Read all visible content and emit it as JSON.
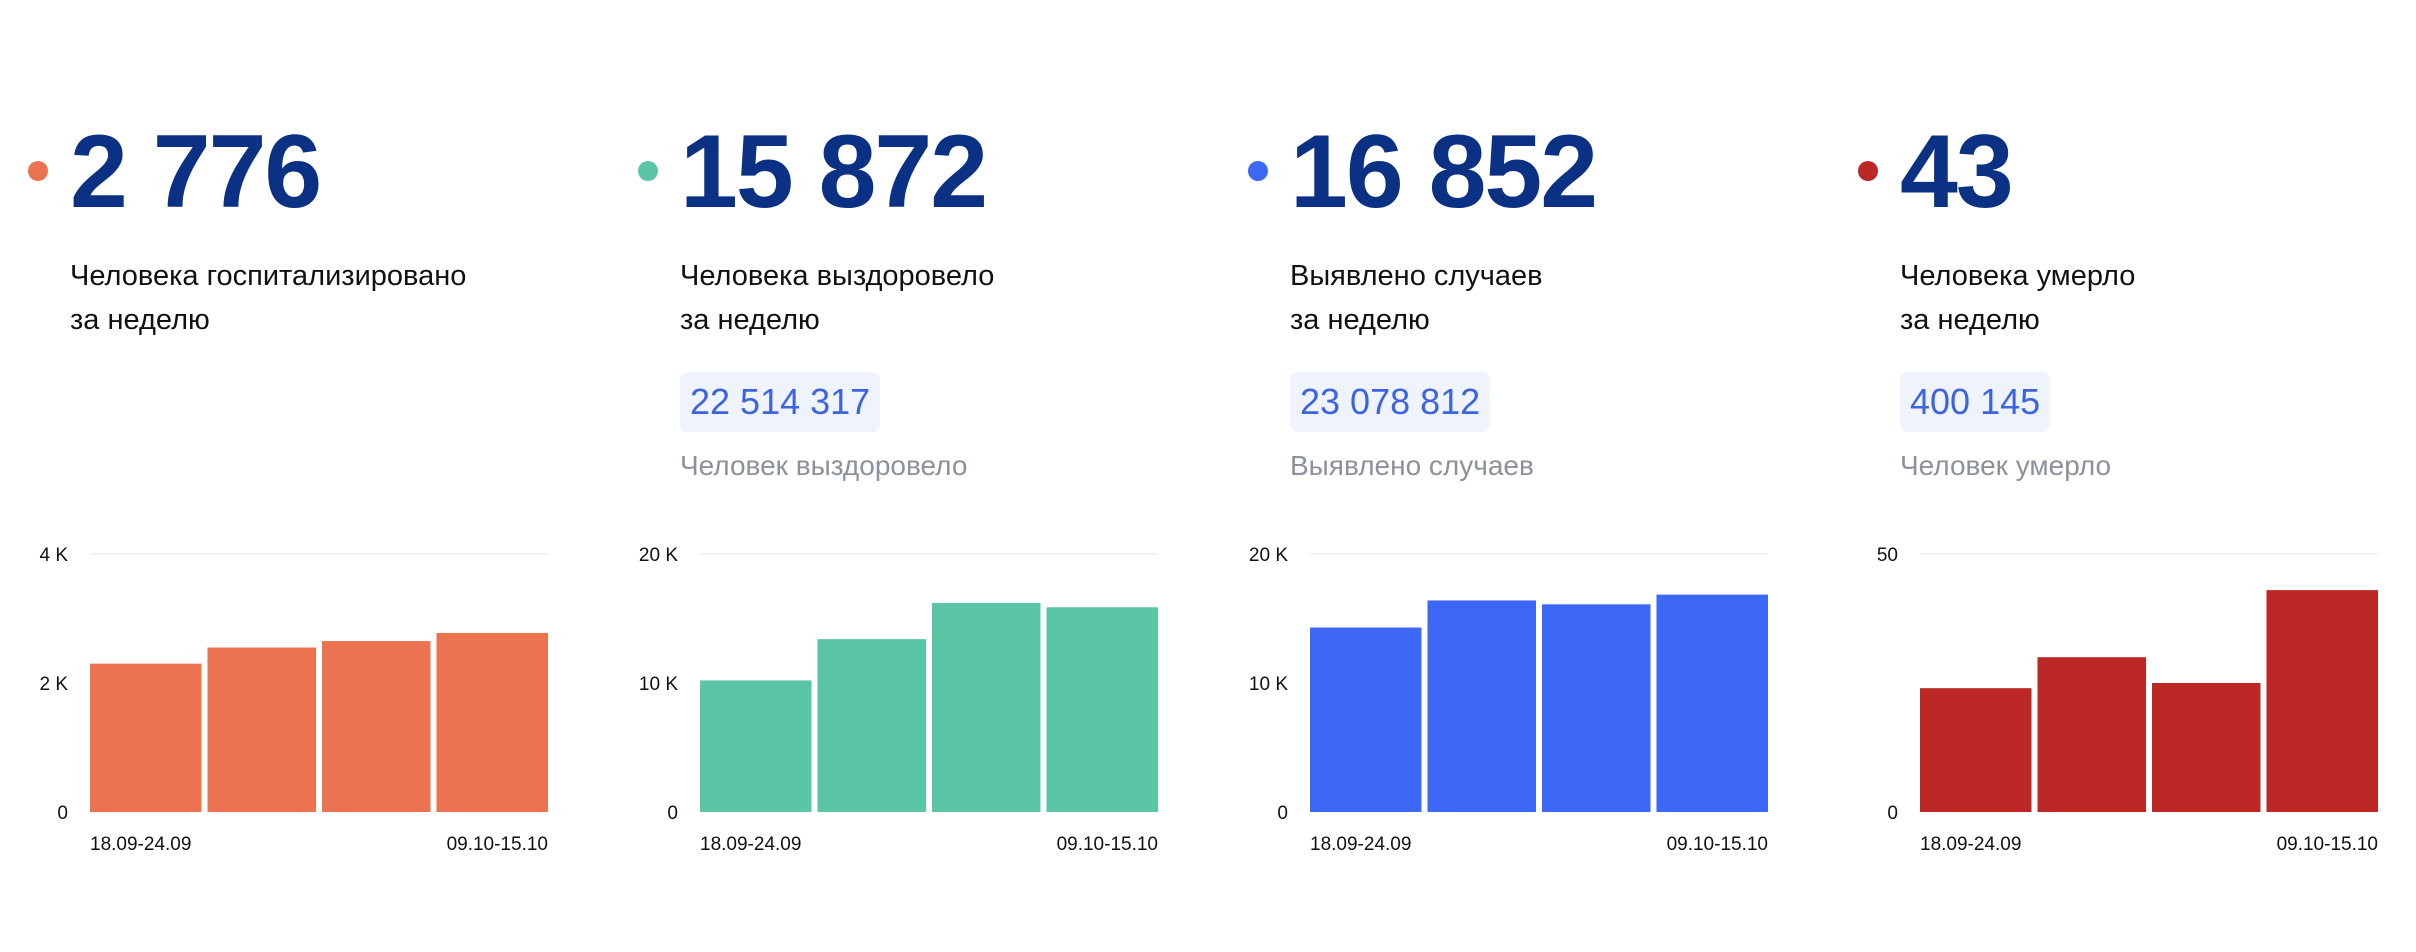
{
  "cards": [
    {
      "value": "2 776",
      "label_line1": "Человека госпитализировано",
      "label_line2": "за неделю",
      "total": "",
      "total_label": "",
      "color": "#ec7350"
    },
    {
      "value": "15 872",
      "label_line1": "Человека выздоровело",
      "label_line2": "за неделю",
      "total": "22 514 317",
      "total_label": "Человек выздоровело",
      "color": "#5ac6a6"
    },
    {
      "value": "16 852",
      "label_line1": "Выявлено случаев",
      "label_line2": "за неделю",
      "total": "23 078 812",
      "total_label": "Выявлено случаев",
      "color": "#3d67f5"
    },
    {
      "value": "43",
      "label_line1": "Человека умерло",
      "label_line2": "за неделю",
      "total": "400 145",
      "total_label": "Человек умерло",
      "color": "#bb2826"
    }
  ],
  "chart_data": [
    {
      "type": "bar",
      "categories": [
        "18.09-24.09",
        "",
        "",
        "09.10-15.10"
      ],
      "values": [
        2300,
        2550,
        2650,
        2776
      ],
      "ylim": [
        0,
        4000
      ],
      "yticks": [
        "4 K",
        "2 K",
        "0"
      ],
      "ytick_values": [
        4000,
        2000,
        0
      ],
      "xtick_first": "18.09-24.09",
      "xtick_last": "09.10-15.10",
      "color": "#ec7350"
    },
    {
      "type": "bar",
      "categories": [
        "18.09-24.09",
        "",
        "",
        "09.10-15.10"
      ],
      "values": [
        10200,
        13400,
        16200,
        15872
      ],
      "ylim": [
        0,
        20000
      ],
      "yticks": [
        "20 K",
        "10 K",
        "0"
      ],
      "ytick_values": [
        20000,
        10000,
        0
      ],
      "xtick_first": "18.09-24.09",
      "xtick_last": "09.10-15.10",
      "color": "#5ac6a6"
    },
    {
      "type": "bar",
      "categories": [
        "18.09-24.09",
        "",
        "",
        "09.10-15.10"
      ],
      "values": [
        14300,
        16400,
        16100,
        16852
      ],
      "ylim": [
        0,
        20000
      ],
      "yticks": [
        "20 K",
        "10 K",
        "0"
      ],
      "ytick_values": [
        20000,
        10000,
        0
      ],
      "xtick_first": "18.09-24.09",
      "xtick_last": "09.10-15.10",
      "color": "#3d67f5"
    },
    {
      "type": "bar",
      "categories": [
        "18.09-24.09",
        "",
        "",
        "09.10-15.10"
      ],
      "values": [
        24,
        30,
        25,
        43
      ],
      "ylim": [
        0,
        50
      ],
      "yticks": [
        "50",
        "0"
      ],
      "ytick_values": [
        50,
        0
      ],
      "xtick_first": "18.09-24.09",
      "xtick_last": "09.10-15.10",
      "color": "#bb2826"
    }
  ]
}
